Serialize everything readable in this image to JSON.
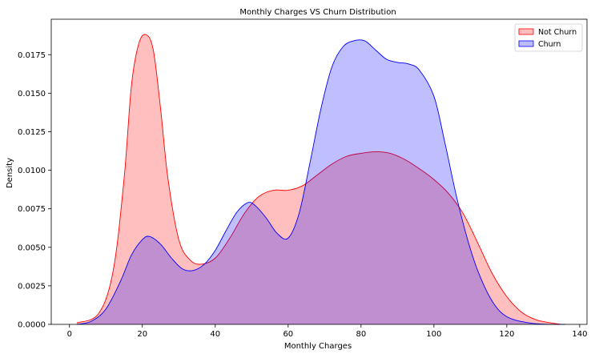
{
  "chart_data": {
    "type": "area",
    "title": "Monthly Charges VS Churn Distribution",
    "xlabel": "Monthly Charges",
    "ylabel": "Density",
    "xlim": [
      -5,
      142
    ],
    "ylim": [
      0,
      0.0198
    ],
    "xticks": [
      0,
      20,
      40,
      60,
      80,
      100,
      120,
      140
    ],
    "xtick_labels": [
      "0",
      "20",
      "40",
      "60",
      "80",
      "100",
      "120",
      "140"
    ],
    "yticks": [
      0,
      0.0025,
      0.005,
      0.0075,
      0.01,
      0.0125,
      0.015,
      0.0175
    ],
    "ytick_labels": [
      "0.0000",
      "0.0025",
      "0.0050",
      "0.0075",
      "0.0100",
      "0.0125",
      "0.0150",
      "0.0175"
    ],
    "grid": false,
    "legend_position": "top-right",
    "series": [
      {
        "name": "Not Churn",
        "color": "#ff0000",
        "fill": "#ffbebe",
        "x": [
          2,
          8,
          12,
          15,
          17,
          19,
          21,
          23,
          25,
          27,
          30,
          33,
          36,
          40,
          44,
          48,
          52,
          56,
          60,
          64,
          68,
          72,
          76,
          80,
          84,
          88,
          92,
          96,
          100,
          104,
          108,
          112,
          116,
          120,
          124,
          128,
          132,
          135
        ],
        "y": [
          0.0001,
          0.0007,
          0.0035,
          0.0095,
          0.0155,
          0.0182,
          0.0188,
          0.0178,
          0.014,
          0.0095,
          0.0055,
          0.0042,
          0.0039,
          0.0043,
          0.0056,
          0.0072,
          0.0083,
          0.0087,
          0.0087,
          0.009,
          0.0097,
          0.0104,
          0.0109,
          0.0111,
          0.0112,
          0.0111,
          0.0107,
          0.0101,
          0.0094,
          0.0085,
          0.0072,
          0.0053,
          0.0033,
          0.0018,
          0.0008,
          0.0003,
          0.0001,
          0.0
        ]
      },
      {
        "name": "Churn",
        "color": "#0000ff",
        "fill": "#bcbcfe",
        "x": [
          2,
          6,
          10,
          14,
          17,
          20,
          22,
          25,
          28,
          31,
          34,
          37,
          40,
          43,
          46,
          49,
          51,
          54,
          57,
          60,
          63,
          66,
          69,
          72,
          75,
          78,
          81,
          84,
          87,
          90,
          93,
          96,
          100,
          103,
          106,
          109,
          112,
          116,
          120,
          126,
          132,
          136
        ],
        "y": [
          0.0,
          0.0002,
          0.001,
          0.0028,
          0.0045,
          0.0055,
          0.0057,
          0.0052,
          0.0043,
          0.0036,
          0.0035,
          0.0039,
          0.0048,
          0.0061,
          0.0073,
          0.0079,
          0.0077,
          0.0069,
          0.0059,
          0.0056,
          0.0072,
          0.0105,
          0.014,
          0.0167,
          0.018,
          0.0184,
          0.0184,
          0.0178,
          0.0172,
          0.017,
          0.0169,
          0.0165,
          0.0148,
          0.0118,
          0.0085,
          0.0057,
          0.0035,
          0.0015,
          0.0005,
          0.0001,
          0.0,
          0.0
        ]
      }
    ]
  }
}
